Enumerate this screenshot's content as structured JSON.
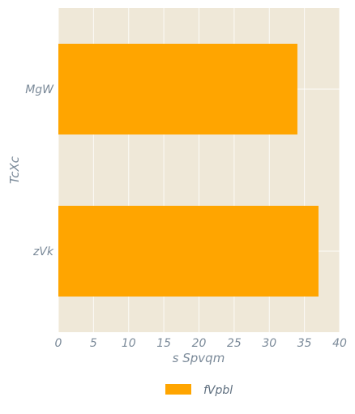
{
  "chart_data": {
    "type": "bar",
    "orientation": "horizontal",
    "categories": [
      "MgW",
      "zVk"
    ],
    "series": [
      {
        "name": "fVpbl",
        "values": [
          34,
          37
        ]
      }
    ],
    "xlabel": "s Spvqm",
    "ylabel": "TcXc",
    "xlim": [
      0,
      40
    ],
    "xticks": [
      0,
      5,
      10,
      15,
      20,
      25,
      30,
      35,
      40
    ],
    "grid": true,
    "legend_position": "bottom-center",
    "colors": {
      "bar": "#ffa500",
      "plot_background": "#efe8d8",
      "grid": "#ffffff",
      "text": "#7b8a99"
    }
  }
}
